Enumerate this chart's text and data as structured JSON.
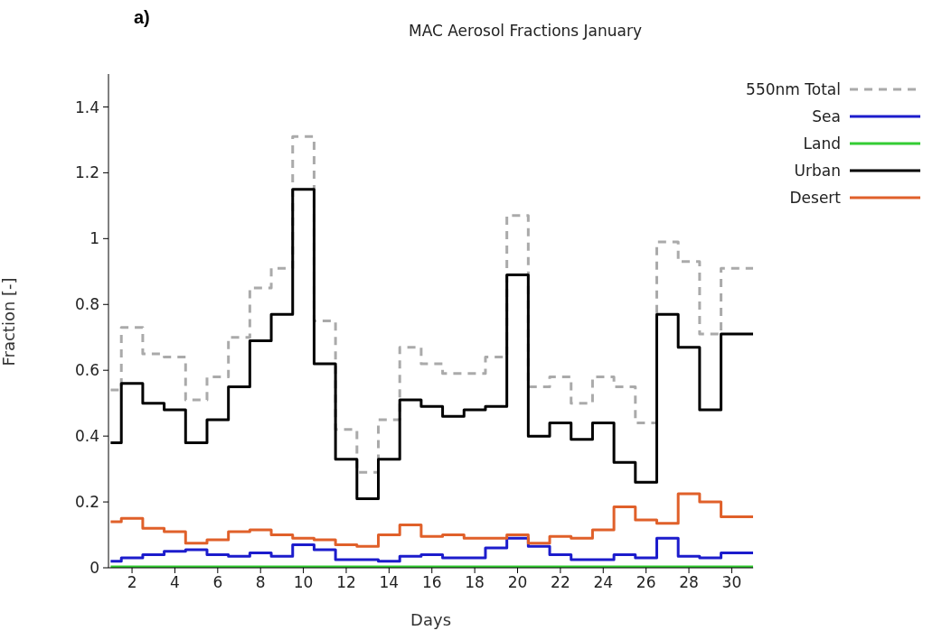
{
  "chart_data": {
    "type": "step",
    "title": "MAC Aerosol Fractions January",
    "xlabel": "Days",
    "ylabel": "Fraction [-]",
    "annotations": [
      "a)"
    ],
    "x": [
      1,
      2,
      3,
      4,
      5,
      6,
      7,
      8,
      9,
      10,
      11,
      12,
      13,
      14,
      15,
      16,
      17,
      18,
      19,
      20,
      21,
      22,
      23,
      24,
      25,
      26,
      27,
      28,
      29,
      30,
      31
    ],
    "series": [
      {
        "name": "550nm Total",
        "color": "#aaaaaa",
        "line_style": "dashed",
        "values": [
          0.54,
          0.73,
          0.65,
          0.64,
          0.51,
          0.58,
          0.7,
          0.85,
          0.91,
          1.31,
          0.75,
          0.42,
          0.29,
          0.45,
          0.67,
          0.62,
          0.59,
          0.59,
          0.64,
          1.07,
          0.55,
          0.58,
          0.5,
          0.58,
          0.55,
          0.44,
          0.99,
          0.93,
          0.71,
          0.91,
          0.91
        ]
      },
      {
        "name": "Sea",
        "color": "#1c1ccc",
        "values": [
          0.02,
          0.03,
          0.04,
          0.05,
          0.055,
          0.04,
          0.035,
          0.045,
          0.035,
          0.07,
          0.055,
          0.025,
          0.025,
          0.02,
          0.035,
          0.04,
          0.03,
          0.03,
          0.06,
          0.09,
          0.065,
          0.04,
          0.025,
          0.025,
          0.04,
          0.03,
          0.09,
          0.035,
          0.03,
          0.045,
          0.045
        ]
      },
      {
        "name": "Land",
        "color": "#33cc33",
        "values": [
          0,
          0,
          0,
          0,
          0,
          0,
          0,
          0,
          0,
          0,
          0,
          0,
          0,
          0,
          0,
          0,
          0,
          0,
          0,
          0,
          0,
          0,
          0,
          0,
          0,
          0,
          0,
          0,
          0,
          0,
          0
        ]
      },
      {
        "name": "Urban",
        "color": "#000000",
        "values": [
          0.38,
          0.56,
          0.5,
          0.48,
          0.38,
          0.45,
          0.55,
          0.69,
          0.77,
          1.15,
          0.62,
          0.33,
          0.21,
          0.33,
          0.51,
          0.49,
          0.46,
          0.48,
          0.49,
          0.89,
          0.4,
          0.44,
          0.39,
          0.44,
          0.32,
          0.26,
          0.77,
          0.67,
          0.48,
          0.71,
          0.71
        ]
      },
      {
        "name": "Desert",
        "color": "#e0602a",
        "values": [
          0.14,
          0.15,
          0.12,
          0.11,
          0.075,
          0.085,
          0.11,
          0.115,
          0.1,
          0.09,
          0.085,
          0.07,
          0.065,
          0.1,
          0.13,
          0.095,
          0.1,
          0.09,
          0.09,
          0.1,
          0.075,
          0.095,
          0.09,
          0.115,
          0.185,
          0.145,
          0.135,
          0.225,
          0.2,
          0.155,
          0.155
        ]
      }
    ],
    "xlim": [
      0.9,
      31
    ],
    "xticks": [
      2,
      4,
      6,
      8,
      10,
      12,
      14,
      16,
      18,
      20,
      22,
      24,
      26,
      28,
      30
    ],
    "ylim": [
      0,
      1.5
    ],
    "yticks": [
      0,
      0.2,
      0.4,
      0.6,
      0.8,
      1,
      1.2,
      1.4
    ],
    "grid": false,
    "legend": "top right",
    "line_style": "solid"
  }
}
